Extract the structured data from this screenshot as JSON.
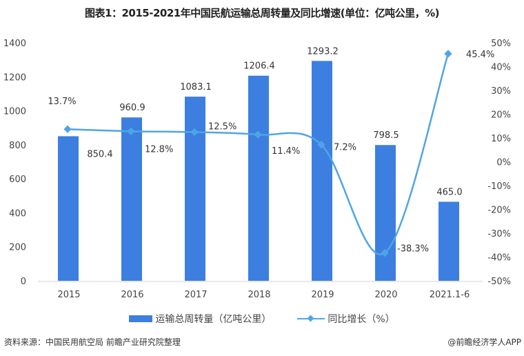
{
  "title": "图表1：2015-2021年中国民航运输总周转量及同比增速(单位：亿吨公里，%)",
  "chart_data": {
    "type": "bar+line",
    "categories": [
      "2015",
      "2016",
      "2017",
      "2018",
      "2019",
      "2020",
      "2021.1-6"
    ],
    "series": [
      {
        "name": "运输总周转量（亿吨公里）",
        "type": "bar",
        "axis": "left",
        "color": "#3d7fe0",
        "values": [
          850.4,
          960.9,
          1083.1,
          1206.4,
          1293.2,
          798.5,
          465.0
        ],
        "labels": [
          "850.4",
          "960.9",
          "1083.1",
          "1206.4",
          "1293.2",
          "798.5",
          "465.0"
        ]
      },
      {
        "name": "同比增长（%）",
        "type": "line",
        "axis": "right",
        "color": "#4ea5e5",
        "values": [
          13.7,
          12.8,
          12.5,
          11.4,
          7.2,
          -38.3,
          45.4
        ],
        "labels": [
          "13.7%",
          "12.8%",
          "12.5%",
          "11.4%",
          "7.2%",
          "-38.3%",
          "45.4%"
        ]
      }
    ],
    "y_left": {
      "range": [
        0,
        1400
      ],
      "ticks": [
        "0",
        "200",
        "400",
        "600",
        "800",
        "1000",
        "1200",
        "1400"
      ]
    },
    "y_right": {
      "range": [
        -50,
        50
      ],
      "ticks": [
        "-50%",
        "-40%",
        "-30%",
        "-20%",
        "-10%",
        "0%",
        "10%",
        "20%",
        "30%",
        "40%",
        "50%"
      ]
    },
    "grid": false,
    "legend_position": "bottom"
  },
  "legend": {
    "bar": "运输总周转量（亿吨公里）",
    "line": "同比增长（%）"
  },
  "source": "资料来源：中国民用航空局 前瞻产业研究院整理",
  "credit": "@前瞻经济学人APP"
}
